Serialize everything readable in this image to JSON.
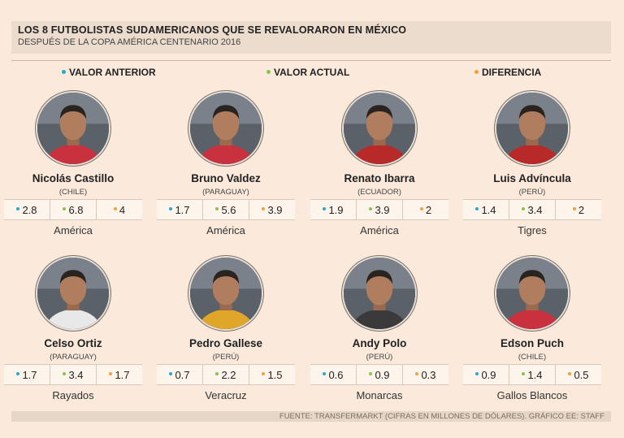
{
  "header": {
    "title": "LOS 8 FUTBOLISTAS SUDAMERICANOS QUE SE REVALORARON EN MÉXICO",
    "subtitle": "DESPUÉS DE LA COPA AMÉRICA CENTENARIO 2016"
  },
  "legend": {
    "previous": "VALOR ANTERIOR",
    "current": "VALOR ACTUAL",
    "difference": "DIFERENCIA"
  },
  "colors": {
    "previous": "#2aa6c8",
    "current": "#8cc152",
    "difference": "#f0a03c"
  },
  "footer": "FUENTE: TRANSFERMARKT (CIFRAS EN MILLONES DE DÓLARES). GRÁFICO EE: STAFF",
  "chart_data": {
    "type": "table",
    "columns": [
      "VALOR ANTERIOR",
      "VALOR ACTUAL",
      "DIFERENCIA"
    ],
    "players": [
      {
        "name": "Nicolás Castillo",
        "country": "(CHILE)",
        "club": "América",
        "previous": "2.8",
        "current": "6.8",
        "difference": "4",
        "jersey": "#c8313d"
      },
      {
        "name": "Bruno Valdez",
        "country": "(PARAGUAY)",
        "club": "América",
        "previous": "1.7",
        "current": "5.6",
        "difference": "3.9",
        "jersey": "#c8313d"
      },
      {
        "name": "Renato Ibarra",
        "country": "(ECUADOR)",
        "club": "América",
        "previous": "1.9",
        "current": "3.9",
        "difference": "2",
        "jersey": "#b82a2a"
      },
      {
        "name": "Luis Advíncula",
        "country": "(PERÚ)",
        "club": "Tigres",
        "previous": "1.4",
        "current": "3.4",
        "difference": "2",
        "jersey": "#b82a2a"
      },
      {
        "name": "Celso Ortiz",
        "country": "(PARAGUAY)",
        "club": "Rayados",
        "previous": "1.7",
        "current": "3.4",
        "difference": "1.7",
        "jersey": "#e8e8e8"
      },
      {
        "name": "Pedro Gallese",
        "country": "(PERÚ)",
        "club": "Veracruz",
        "previous": "0.7",
        "current": "2.2",
        "difference": "1.5",
        "jersey": "#e0a62a"
      },
      {
        "name": "Andy Polo",
        "country": "(PERÚ)",
        "club": "Monarcas",
        "previous": "0.6",
        "current": "0.9",
        "difference": "0.3",
        "jersey": "#3a3a3a"
      },
      {
        "name": "Edson Puch",
        "country": "(CHILE)",
        "club": "Gallos Blancos",
        "previous": "0.9",
        "current": "1.4",
        "difference": "0.5",
        "jersey": "#c8313d"
      }
    ]
  }
}
